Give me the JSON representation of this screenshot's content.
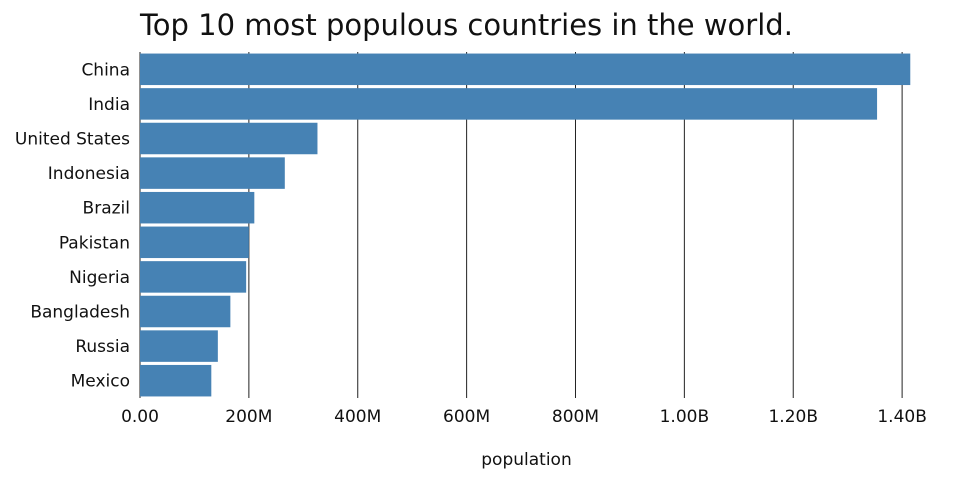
{
  "chart_data": {
    "type": "bar",
    "orientation": "horizontal",
    "title": "Top 10 most populous countries in the world.",
    "xlabel": "population",
    "ylabel": "",
    "categories": [
      "China",
      "India",
      "United States",
      "Indonesia",
      "Brazil",
      "Pakistan",
      "Nigeria",
      "Bangladesh",
      "Russia",
      "Mexico"
    ],
    "values": [
      1415000000,
      1354000000,
      326000000,
      266000000,
      210000000,
      200000000,
      195000000,
      166000000,
      143000000,
      131000000
    ],
    "xlim": [
      0,
      1420000000
    ],
    "x_ticks": [
      0,
      200000000,
      400000000,
      600000000,
      800000000,
      1000000000,
      1200000000,
      1400000000
    ],
    "x_tick_labels": [
      "0.00",
      "200M",
      "400M",
      "600M",
      "800M",
      "1.00B",
      "1.20B",
      "1.40B"
    ],
    "grid": "vertical",
    "legend": "none",
    "bar_color": "#4682b4",
    "grid_color": "#222222"
  }
}
